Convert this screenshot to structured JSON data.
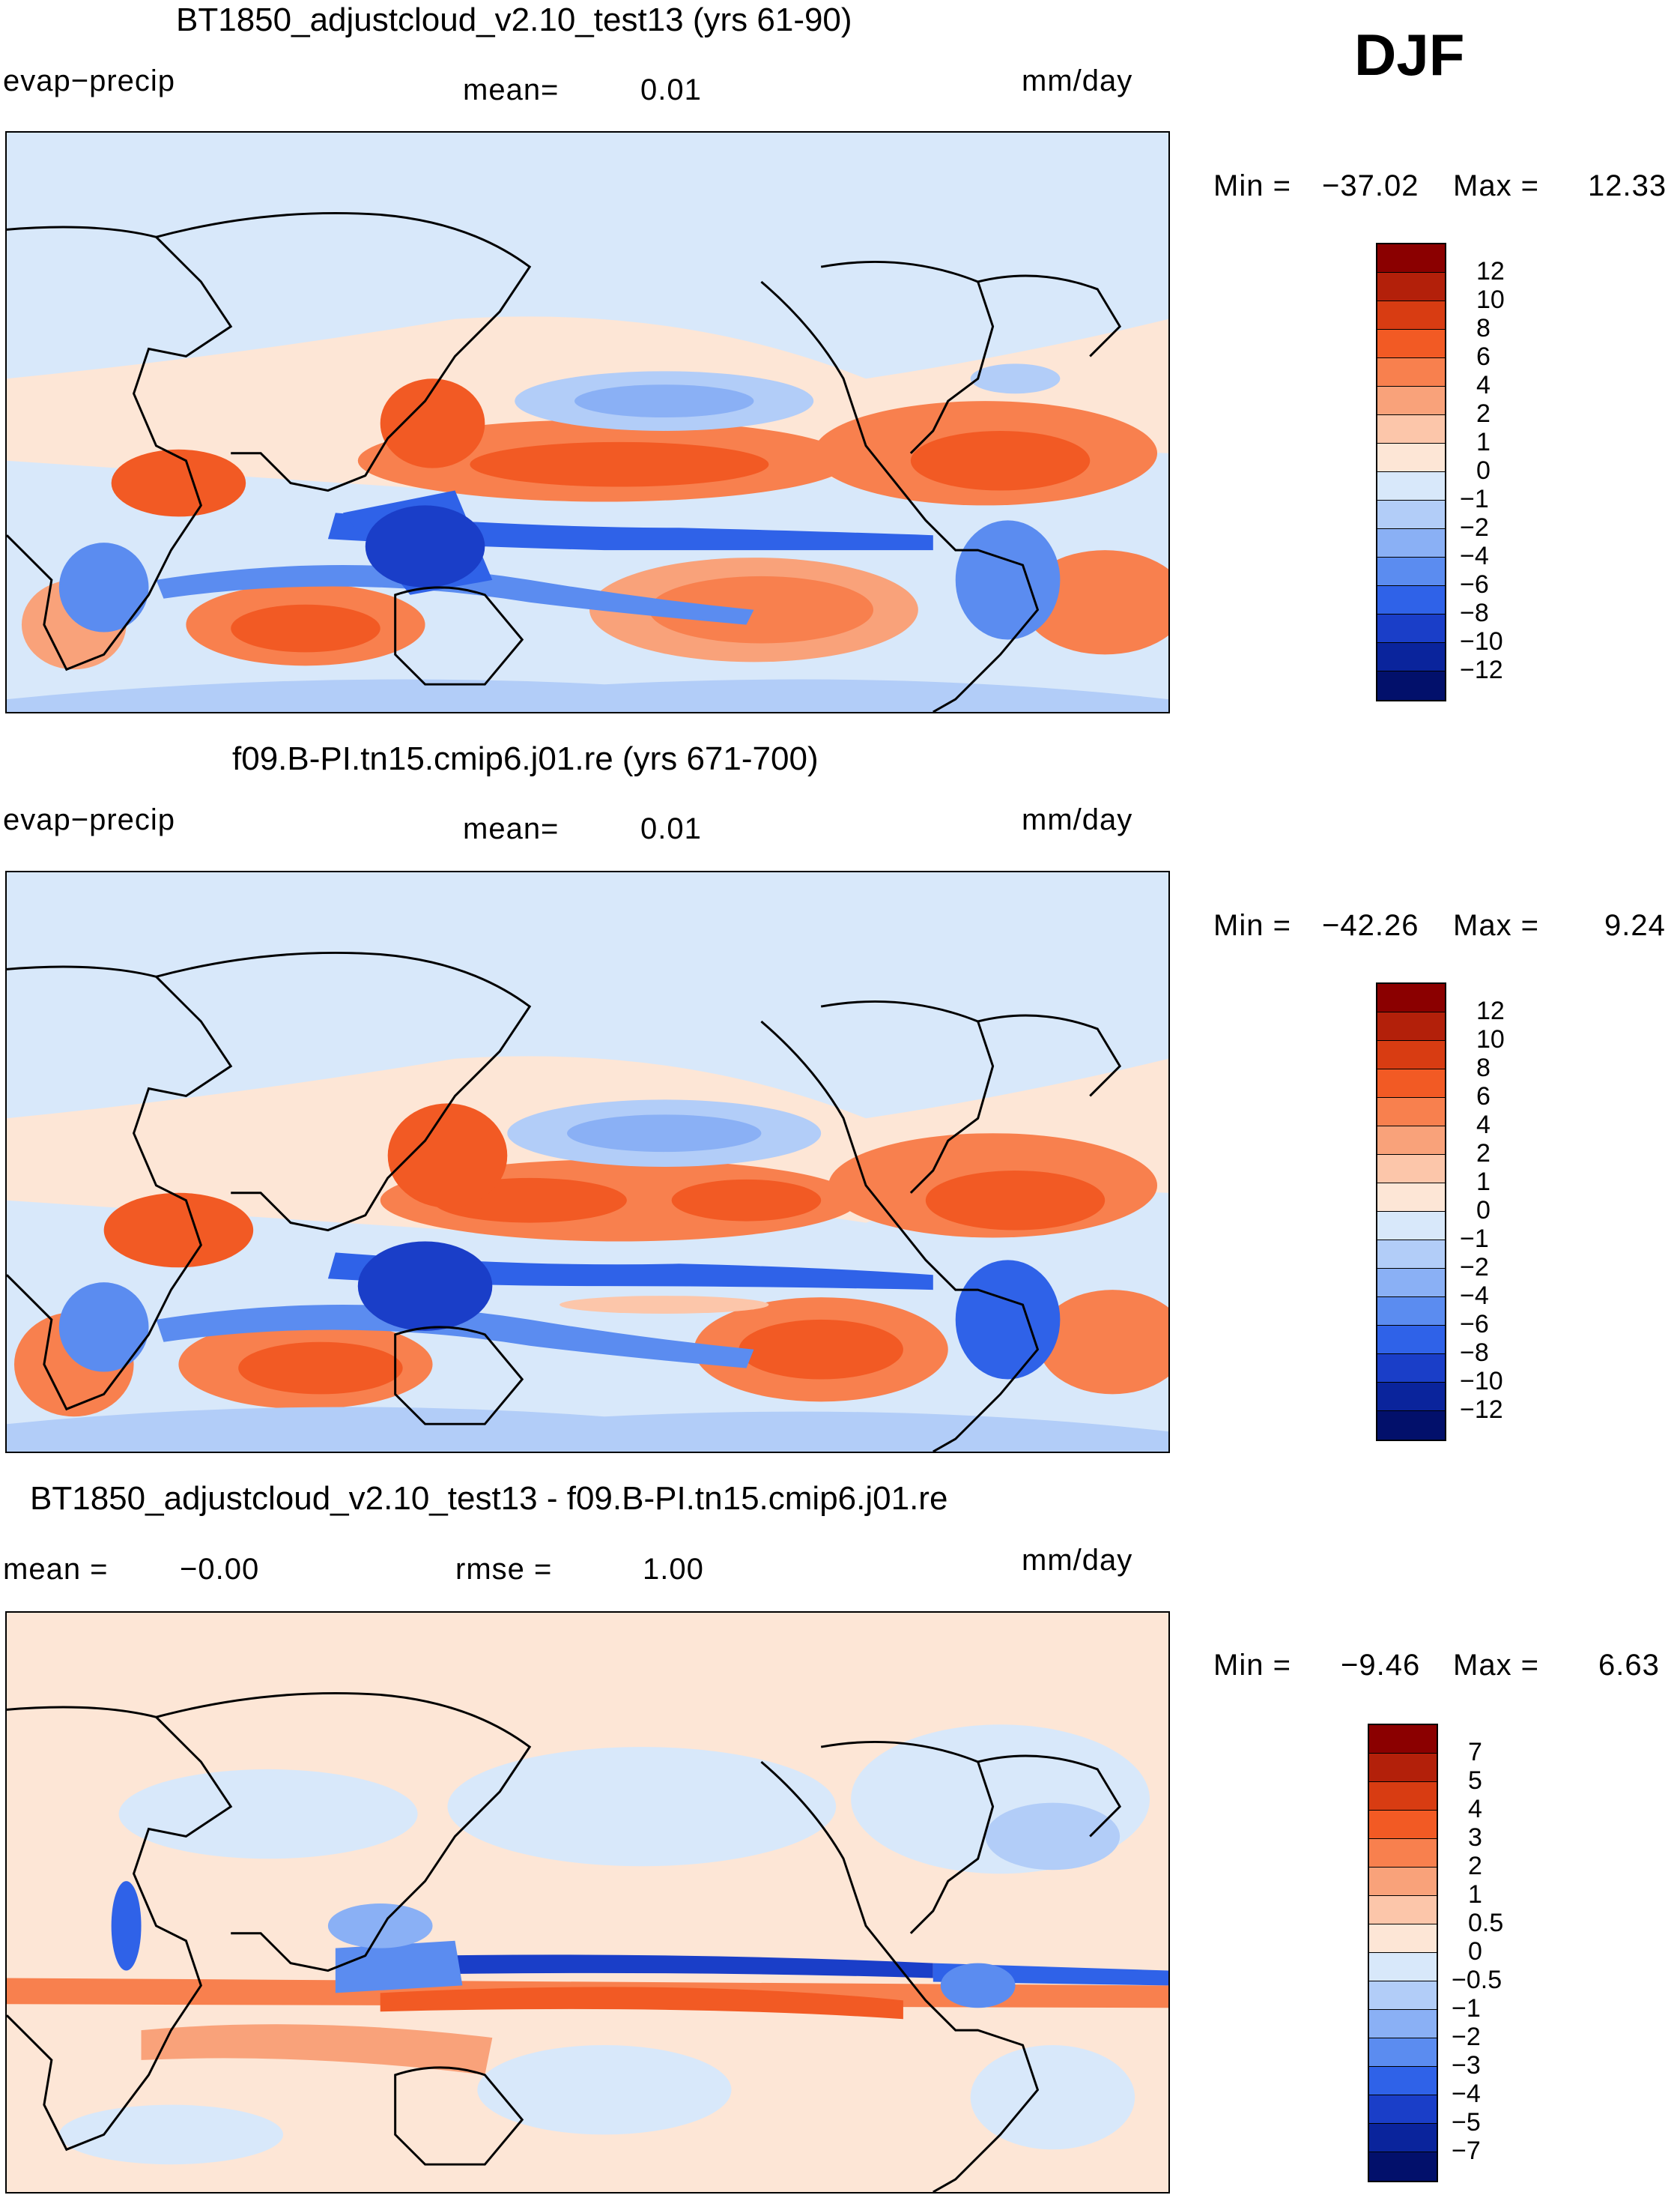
{
  "season": "DJF",
  "panels": [
    {
      "title": "BT1850_adjustcloud_v2.10_test13 (yrs 61-90)",
      "left_label": "evap−precip",
      "center_label": "mean=",
      "center_value": "0.01",
      "units": "mm/day",
      "min_label": "Min =",
      "min_value": "−37.02",
      "max_label": "Max =",
      "max_value": "12.33"
    },
    {
      "title": "f09.B-PI.tn15.cmip6.j01.re (yrs 671-700)",
      "left_label": "evap−precip",
      "center_label": "mean=",
      "center_value": "0.01",
      "units": "mm/day",
      "min_label": "Min =",
      "min_value": "−42.26",
      "max_label": "Max =",
      "max_value": "9.24"
    },
    {
      "title": "BT1850_adjustcloud_v2.10_test13 - f09.B-PI.tn15.cmip6.j01.re",
      "left_label": "mean =",
      "left_value": "−0.00",
      "center_label": "rmse =",
      "center_value": "1.00",
      "units": "mm/day",
      "min_label": "Min =",
      "min_value": "−9.46",
      "max_label": "Max =",
      "max_value": "6.63"
    }
  ],
  "colorbar_model": {
    "labels": [
      "12",
      "10",
      "8",
      "6",
      "4",
      "2",
      "1",
      "0",
      "−1",
      "−2",
      "−4",
      "−6",
      "−8",
      "−10",
      "−12"
    ],
    "colors": [
      "#8b0000",
      "#b3200a",
      "#d83c12",
      "#f25a24",
      "#f8804e",
      "#f9a27a",
      "#fcc6aa",
      "#fde6d6",
      "#d8e8fa",
      "#b2cdf8",
      "#8ab0f5",
      "#5b8cf0",
      "#2f62e8",
      "#1a3ec8",
      "#0a249c",
      "#02106b"
    ]
  },
  "colorbar_diff": {
    "labels": [
      "7",
      "5",
      "4",
      "3",
      "2",
      "1",
      "0.5",
      "0",
      "−0.5",
      "−1",
      "−2",
      "−3",
      "−4",
      "−5",
      "−7"
    ],
    "colors": [
      "#8b0000",
      "#b3200a",
      "#d83c12",
      "#f25a24",
      "#f8804e",
      "#f9a27a",
      "#fcc6aa",
      "#fde6d6",
      "#d8e8fa",
      "#b2cdf8",
      "#8ab0f5",
      "#5b8cf0",
      "#2f62e8",
      "#1a3ec8",
      "#0a249c",
      "#02106b"
    ]
  }
}
